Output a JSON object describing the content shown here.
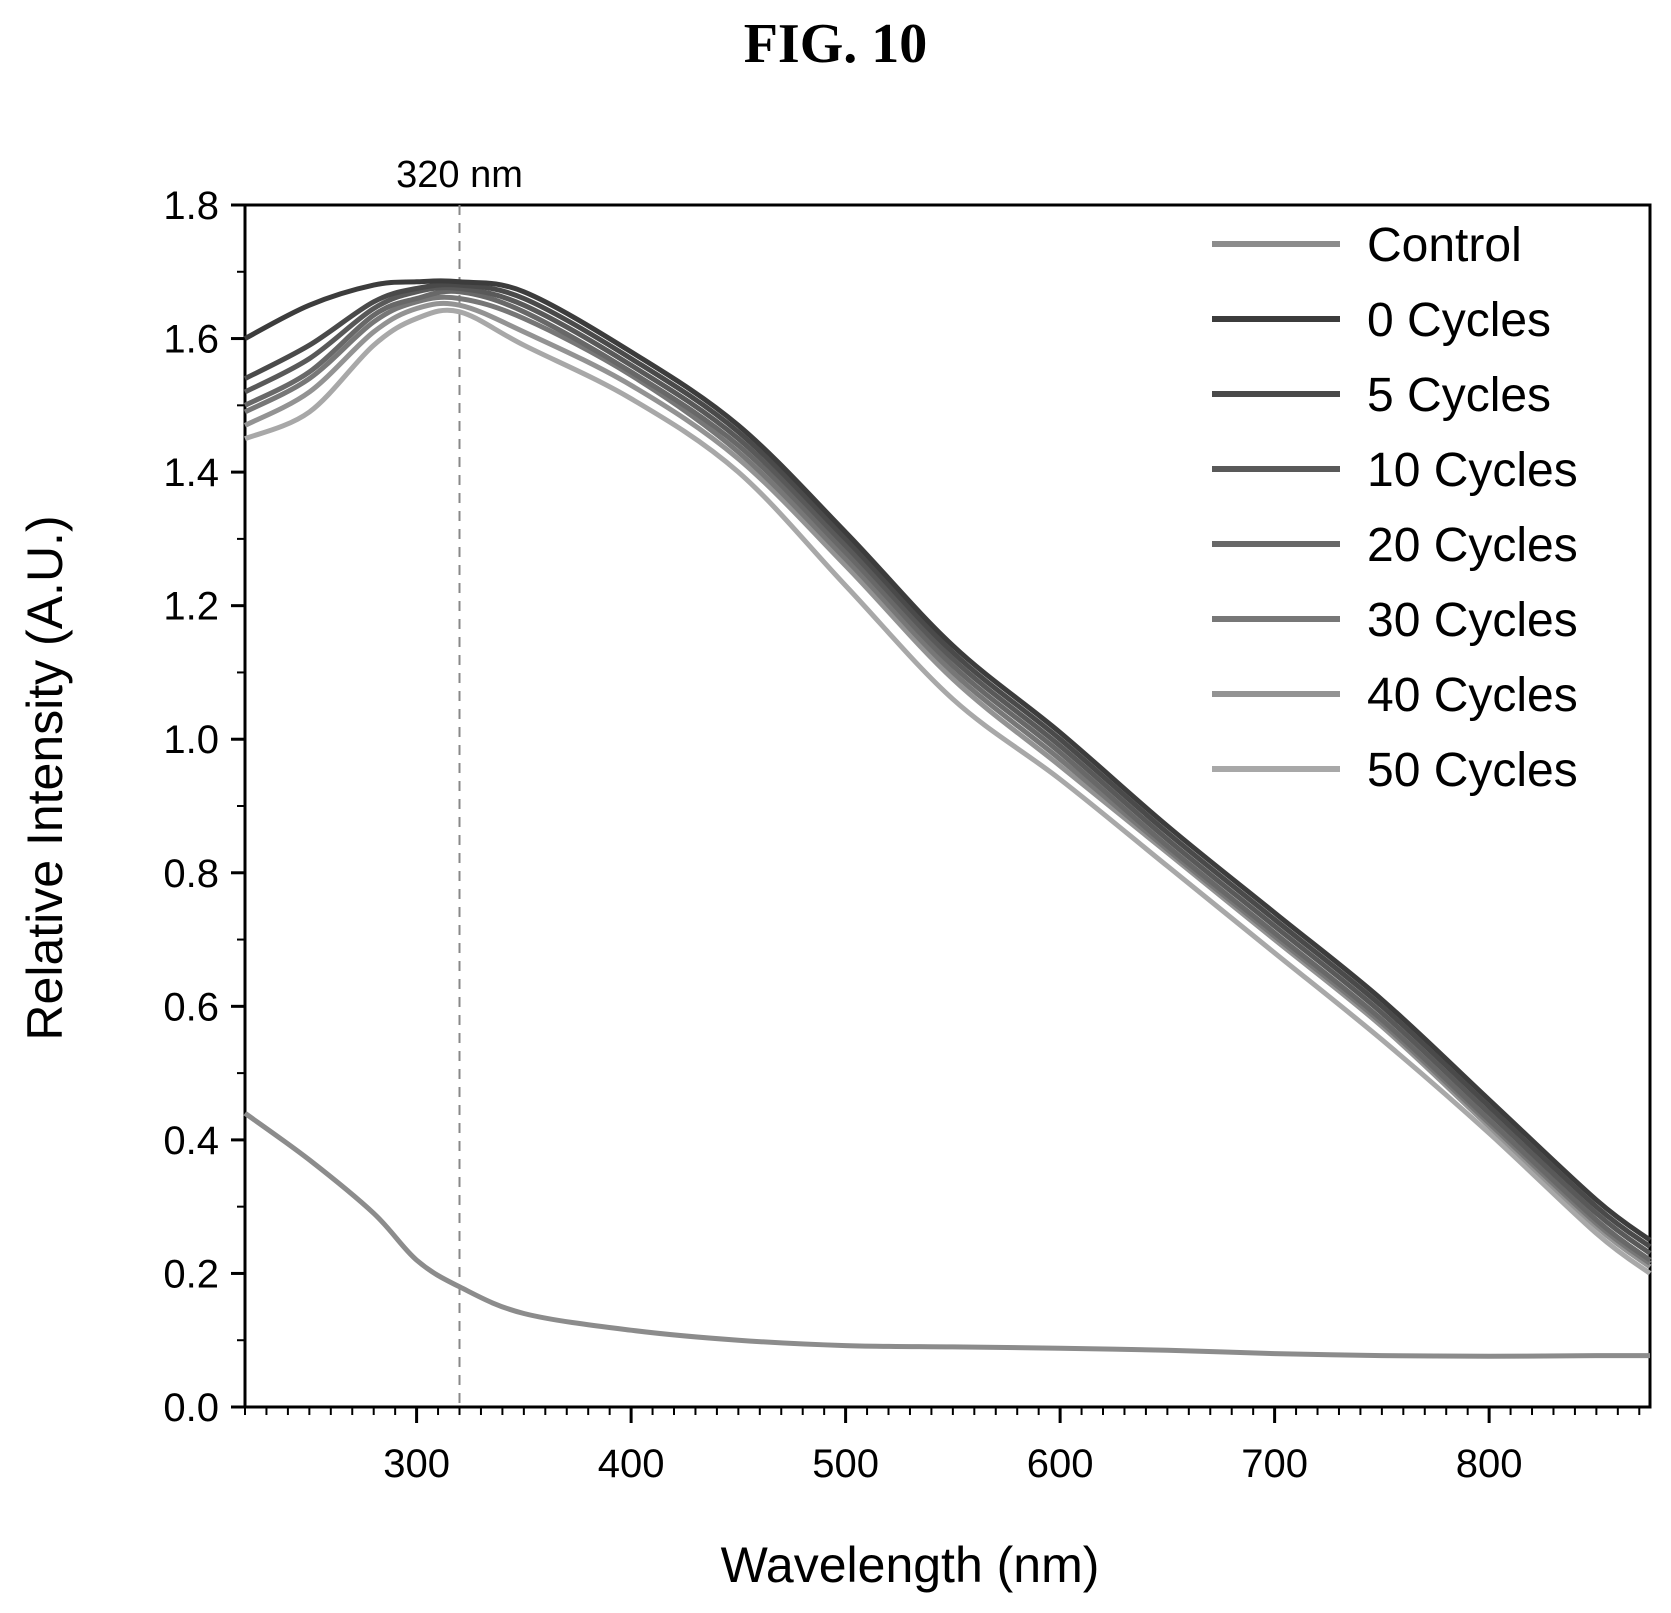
{
  "figure_title": "FIG. 10",
  "chart_data": {
    "type": "line",
    "title": "",
    "xlabel": "Wavelength (nm)",
    "ylabel": "Relative Intensity (A.U.)",
    "xlim": [
      220,
      875
    ],
    "ylim": [
      0.0,
      1.8
    ],
    "xticks": [
      300,
      400,
      500,
      600,
      700,
      800
    ],
    "yticks": [
      "0.0",
      "0.2",
      "0.4",
      "0.6",
      "0.8",
      "1.0",
      "1.2",
      "1.4",
      "1.6",
      "1.8"
    ],
    "grid": false,
    "legend_position": "top-right",
    "annotation": {
      "text": "320 nm",
      "x": 320,
      "style": "dashed vertical line"
    },
    "x": [
      220,
      250,
      280,
      300,
      320,
      350,
      400,
      450,
      500,
      550,
      600,
      650,
      700,
      750,
      800,
      850,
      875
    ],
    "series": [
      {
        "name": "Control",
        "color": "#8c8c8c",
        "values": [
          0.44,
          0.37,
          0.29,
          0.22,
          0.18,
          0.14,
          0.115,
          0.1,
          0.092,
          0.09,
          0.088,
          0.085,
          0.08,
          0.077,
          0.076,
          0.077,
          0.077
        ]
      },
      {
        "name": "0 Cycles",
        "color": "#3c3c3c",
        "values": [
          1.6,
          1.65,
          1.68,
          1.685,
          1.685,
          1.67,
          1.58,
          1.47,
          1.31,
          1.14,
          1.01,
          0.87,
          0.74,
          0.61,
          0.46,
          0.31,
          0.25
        ]
      },
      {
        "name": "5 Cycles",
        "color": "#4a4a4a",
        "values": [
          1.54,
          1.59,
          1.655,
          1.675,
          1.68,
          1.66,
          1.57,
          1.46,
          1.3,
          1.13,
          1.0,
          0.86,
          0.73,
          0.6,
          0.45,
          0.3,
          0.24
        ]
      },
      {
        "name": "10 Cycles",
        "color": "#595959",
        "values": [
          1.52,
          1.57,
          1.645,
          1.67,
          1.675,
          1.65,
          1.56,
          1.45,
          1.29,
          1.12,
          0.99,
          0.85,
          0.72,
          0.59,
          0.44,
          0.29,
          0.23
        ]
      },
      {
        "name": "20 Cycles",
        "color": "#686868",
        "values": [
          1.5,
          1.55,
          1.635,
          1.66,
          1.67,
          1.64,
          1.55,
          1.44,
          1.28,
          1.11,
          0.98,
          0.84,
          0.71,
          0.58,
          0.43,
          0.28,
          0.22
        ]
      },
      {
        "name": "30 Cycles",
        "color": "#777777",
        "values": [
          1.49,
          1.54,
          1.625,
          1.655,
          1.66,
          1.63,
          1.545,
          1.43,
          1.27,
          1.1,
          0.97,
          0.835,
          0.705,
          0.575,
          0.425,
          0.275,
          0.215
        ]
      },
      {
        "name": "40 Cycles",
        "color": "#939393",
        "values": [
          1.47,
          1.52,
          1.61,
          1.645,
          1.65,
          1.61,
          1.53,
          1.42,
          1.26,
          1.09,
          0.96,
          0.83,
          0.7,
          0.57,
          0.42,
          0.27,
          0.21
        ]
      },
      {
        "name": "50 Cycles",
        "color": "#a8a8a8",
        "values": [
          1.45,
          1.49,
          1.59,
          1.63,
          1.64,
          1.59,
          1.51,
          1.4,
          1.23,
          1.06,
          0.94,
          0.81,
          0.68,
          0.55,
          0.41,
          0.26,
          0.2
        ]
      }
    ]
  }
}
